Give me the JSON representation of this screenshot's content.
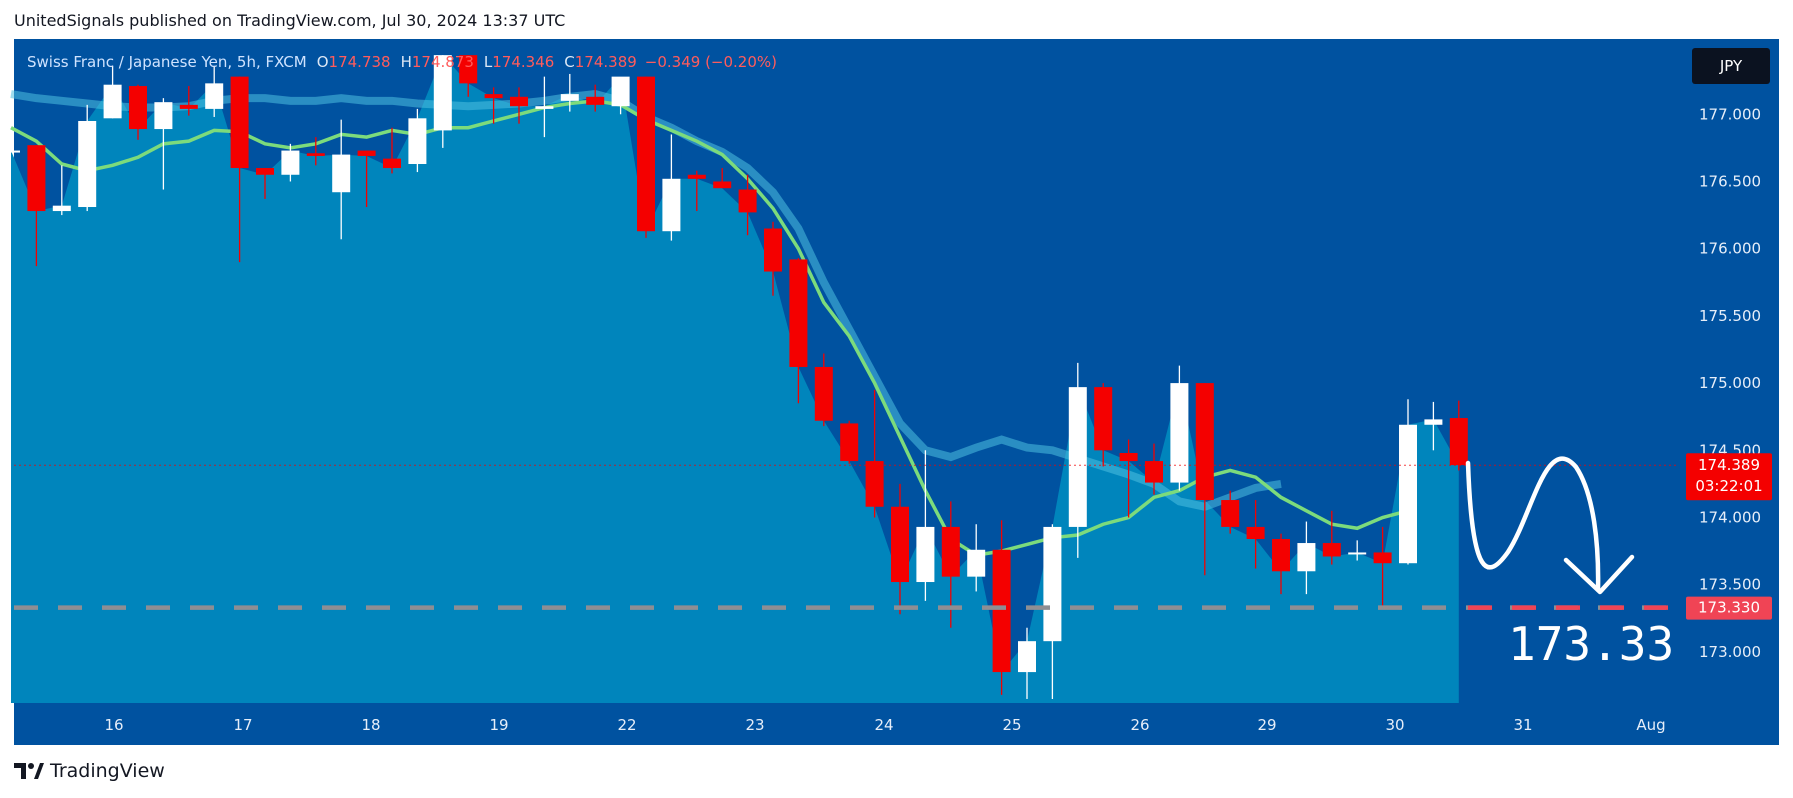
{
  "header": {
    "published": "UnitedSignals published on TradingView.com, Jul 30, 2024 13:37 UTC"
  },
  "footer": {
    "brand": "TradingView"
  },
  "legend": {
    "symbol": "Swiss Franc  / Japanese Yen, 5h, FXCM",
    "open_key": "O",
    "open": "174.738",
    "high_key": "H",
    "high": "174.873",
    "low_key": "L",
    "low": "174.346",
    "close_key": "C",
    "close": "174.389",
    "change": "−0.349 (−0.20%)"
  },
  "currency_button": "JPY",
  "colors": {
    "background": "#0052A0",
    "area": "#0085BC",
    "up": "#FFFFFF",
    "down": "#F40000",
    "ma_fast": "#7CDB7C",
    "ma_slow": "#4CC0E0",
    "target_line": "#F04455",
    "price_label": "#F40000"
  },
  "chart_data": {
    "type": "candlestick",
    "title": "Swiss Franc / Japanese Yen, 5h, FXCM",
    "ylim": [
      172.62,
      177.56
    ],
    "y_ticks": [
      "177.000",
      "176.500",
      "176.000",
      "175.500",
      "175.000",
      "174.500",
      "174.000",
      "173.500",
      "173.000"
    ],
    "x_labels": [
      "16",
      "17",
      "18",
      "19",
      "22",
      "23",
      "24",
      "25",
      "26",
      "29",
      "30",
      "31",
      "Aug"
    ],
    "candles": [
      {
        "o": 176.73,
        "h": 176.75,
        "l": 176.72,
        "c": 176.73
      },
      {
        "o": 176.77,
        "h": 176.77,
        "l": 175.87,
        "c": 176.28
      },
      {
        "o": 176.28,
        "h": 176.62,
        "l": 176.25,
        "c": 176.32
      },
      {
        "o": 176.31,
        "h": 177.07,
        "l": 176.28,
        "c": 176.95
      },
      {
        "o": 176.97,
        "h": 177.36,
        "l": 176.97,
        "c": 177.22
      },
      {
        "o": 177.21,
        "h": 177.22,
        "l": 176.81,
        "c": 176.89
      },
      {
        "o": 176.89,
        "h": 177.12,
        "l": 176.44,
        "c": 177.09
      },
      {
        "o": 177.07,
        "h": 177.21,
        "l": 176.99,
        "c": 177.04
      },
      {
        "o": 177.04,
        "h": 177.36,
        "l": 176.98,
        "c": 177.23
      },
      {
        "o": 177.28,
        "h": 177.28,
        "l": 175.9,
        "c": 176.6
      },
      {
        "o": 176.6,
        "h": 176.6,
        "l": 176.37,
        "c": 176.55
      },
      {
        "o": 176.55,
        "h": 176.78,
        "l": 176.5,
        "c": 176.73
      },
      {
        "o": 176.71,
        "h": 176.83,
        "l": 176.62,
        "c": 176.69
      },
      {
        "o": 176.42,
        "h": 176.96,
        "l": 176.07,
        "c": 176.7
      },
      {
        "o": 176.73,
        "h": 176.73,
        "l": 176.31,
        "c": 176.69
      },
      {
        "o": 176.67,
        "h": 176.9,
        "l": 176.56,
        "c": 176.6
      },
      {
        "o": 176.63,
        "h": 177.04,
        "l": 176.57,
        "c": 176.97
      },
      {
        "o": 176.88,
        "h": 177.44,
        "l": 176.75,
        "c": 177.44
      },
      {
        "o": 177.44,
        "h": 177.44,
        "l": 177.13,
        "c": 177.23
      },
      {
        "o": 177.15,
        "h": 177.2,
        "l": 176.93,
        "c": 177.12
      },
      {
        "o": 177.13,
        "h": 177.2,
        "l": 176.93,
        "c": 177.06
      },
      {
        "o": 177.04,
        "h": 177.28,
        "l": 176.83,
        "c": 177.06
      },
      {
        "o": 177.1,
        "h": 177.3,
        "l": 177.02,
        "c": 177.15
      },
      {
        "o": 177.13,
        "h": 177.22,
        "l": 177.02,
        "c": 177.07
      },
      {
        "o": 177.06,
        "h": 177.27,
        "l": 177.0,
        "c": 177.28
      },
      {
        "o": 177.28,
        "h": 177.28,
        "l": 176.08,
        "c": 176.13
      },
      {
        "o": 176.13,
        "h": 176.85,
        "l": 176.06,
        "c": 176.52
      },
      {
        "o": 176.55,
        "h": 176.58,
        "l": 176.28,
        "c": 176.52
      },
      {
        "o": 176.5,
        "h": 176.6,
        "l": 176.48,
        "c": 176.45
      },
      {
        "o": 176.44,
        "h": 176.55,
        "l": 176.1,
        "c": 176.27
      },
      {
        "o": 176.15,
        "h": 176.2,
        "l": 175.65,
        "c": 175.83
      },
      {
        "o": 175.92,
        "h": 175.93,
        "l": 174.85,
        "c": 175.12
      },
      {
        "o": 175.12,
        "h": 175.22,
        "l": 174.68,
        "c": 174.72
      },
      {
        "o": 174.7,
        "h": 174.72,
        "l": 174.4,
        "c": 174.42
      },
      {
        "o": 174.42,
        "h": 174.95,
        "l": 174.0,
        "c": 174.08
      },
      {
        "o": 174.08,
        "h": 174.25,
        "l": 173.28,
        "c": 173.52
      },
      {
        "o": 173.52,
        "h": 174.5,
        "l": 173.38,
        "c": 173.93
      },
      {
        "o": 173.93,
        "h": 174.12,
        "l": 173.18,
        "c": 173.56
      },
      {
        "o": 173.56,
        "h": 173.95,
        "l": 173.45,
        "c": 173.76
      },
      {
        "o": 173.76,
        "h": 173.98,
        "l": 172.68,
        "c": 172.85
      },
      {
        "o": 172.85,
        "h": 173.18,
        "l": 172.65,
        "c": 173.08
      },
      {
        "o": 173.08,
        "h": 173.95,
        "l": 172.65,
        "c": 173.93
      },
      {
        "o": 173.93,
        "h": 175.15,
        "l": 173.7,
        "c": 174.97
      },
      {
        "o": 174.97,
        "h": 175.0,
        "l": 174.38,
        "c": 174.5
      },
      {
        "o": 174.48,
        "h": 174.58,
        "l": 174.0,
        "c": 174.42
      },
      {
        "o": 174.42,
        "h": 174.55,
        "l": 174.17,
        "c": 174.26
      },
      {
        "o": 174.26,
        "h": 175.13,
        "l": 174.2,
        "c": 175.0
      },
      {
        "o": 175.0,
        "h": 175.0,
        "l": 173.57,
        "c": 174.13
      },
      {
        "o": 174.13,
        "h": 174.2,
        "l": 173.88,
        "c": 173.93
      },
      {
        "o": 173.93,
        "h": 174.13,
        "l": 173.62,
        "c": 173.84
      },
      {
        "o": 173.84,
        "h": 173.88,
        "l": 173.43,
        "c": 173.6
      },
      {
        "o": 173.6,
        "h": 173.97,
        "l": 173.43,
        "c": 173.81
      },
      {
        "o": 173.81,
        "h": 174.05,
        "l": 173.65,
        "c": 173.71
      },
      {
        "o": 173.73,
        "h": 173.83,
        "l": 173.68,
        "c": 173.74
      },
      {
        "o": 173.74,
        "h": 173.93,
        "l": 173.33,
        "c": 173.66
      },
      {
        "o": 173.66,
        "h": 174.88,
        "l": 173.65,
        "c": 174.69
      },
      {
        "o": 174.69,
        "h": 174.86,
        "l": 174.5,
        "c": 174.73
      },
      {
        "o": 174.74,
        "h": 174.87,
        "l": 174.35,
        "c": 174.39
      }
    ],
    "ma_fast": [
      176.9,
      176.8,
      176.63,
      176.58,
      176.62,
      176.68,
      176.78,
      176.8,
      176.88,
      176.87,
      176.78,
      176.75,
      176.78,
      176.85,
      176.83,
      176.88,
      176.85,
      176.9,
      176.9,
      176.95,
      177.0,
      177.05,
      177.08,
      177.1,
      177.07,
      176.96,
      176.88,
      176.8,
      176.7,
      176.52,
      176.3,
      176.0,
      175.6,
      175.35,
      175.0,
      174.6,
      174.2,
      173.84,
      173.72,
      173.75,
      173.8,
      173.85,
      173.87,
      173.95,
      174.0,
      174.15,
      174.2,
      174.3,
      174.35,
      174.3,
      174.15,
      174.05,
      173.95,
      173.92,
      174.0,
      174.05
    ],
    "ma_slow": [
      177.15,
      177.12,
      177.1,
      177.08,
      177.06,
      177.05,
      177.05,
      177.06,
      177.1,
      177.12,
      177.12,
      177.1,
      177.1,
      177.12,
      177.1,
      177.1,
      177.08,
      177.07,
      177.06,
      177.07,
      177.08,
      177.1,
      177.13,
      177.15,
      177.1,
      176.98,
      176.9,
      176.8,
      176.72,
      176.6,
      176.42,
      176.15,
      175.75,
      175.4,
      175.05,
      174.7,
      174.5,
      174.45,
      174.52,
      174.58,
      174.52,
      174.5,
      174.44,
      174.38,
      174.32,
      174.25,
      174.12,
      174.08,
      174.15,
      174.22,
      174.25
    ],
    "last_price": {
      "value": "174.389",
      "countdown": "03:22:01"
    },
    "target": {
      "value": "173.330",
      "annotation": "173.33"
    }
  }
}
